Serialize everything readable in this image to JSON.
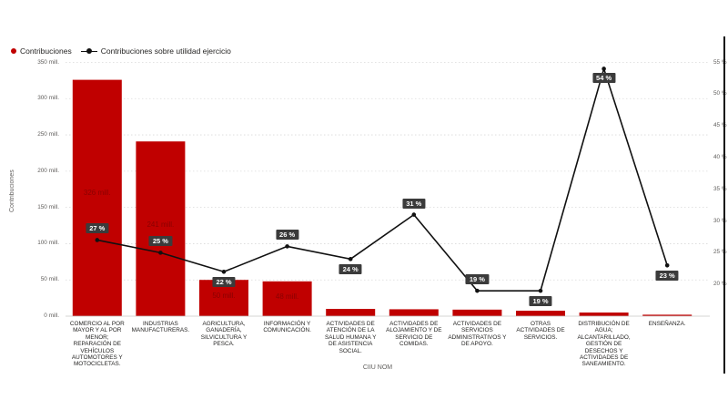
{
  "legend": {
    "bar_series": "Contribuciones",
    "line_series": "Contribuciones sobre utilidad ejercicio"
  },
  "axes": {
    "y_left_label": "Contribuciones",
    "x_label": "CIIU NOM"
  },
  "colors": {
    "bar": "#c00000",
    "line": "#111111",
    "badge": "#3b3b3b",
    "grid": "#d9d9d9",
    "tick_text": "#605e5c"
  },
  "chart_data": {
    "type": "bar",
    "combo_line_series": true,
    "categories": [
      "COMERCIO AL POR MAYOR Y AL POR MENOR; REPARACIÓN DE VEHÍCULOS AUTOMOTORES Y MOTOCICLETAS.",
      "INDUSTRIAS MANUFACTURERAS.",
      "AGRICULTURA, GANADERÍA, SILVICULTURA Y PESCA.",
      "INFORMACIÓN Y COMUNICACIÓN.",
      "ACTIVIDADES DE ATENCIÓN DE LA SALUD HUMANA Y DE ASISTENCIA SOCIAL.",
      "ACTIVIDADES DE ALOJAMIENTO Y DE SERVICIO DE COMIDAS.",
      "ACTIVIDADES DE SERVICIOS ADMINISTRATIVOS Y DE APOYO.",
      "OTRAS ACTIVIDADES DE SERVICIOS.",
      "DISTRIBUCIÓN DE AGUA; ALCANTARILLADO, GESTIÓN DE DESECHOS Y ACTIVIDADES DE SANEAMIENTO.",
      "ENSEÑANZA."
    ],
    "series": [
      {
        "name": "Contribuciones",
        "type": "bar",
        "axis": "left",
        "values": [
          326,
          241,
          50,
          48,
          10,
          9.5,
          9,
          7.5,
          5,
          2
        ],
        "value_labels": [
          "326 mill.",
          "241 mill.",
          "50 mill.",
          "48 mill.",
          "",
          "",
          "",
          "",
          "",
          ""
        ]
      },
      {
        "name": "Contribuciones sobre utilidad ejercicio",
        "type": "line",
        "axis": "right",
        "values": [
          27,
          25,
          22,
          26,
          24,
          31,
          19,
          19,
          54,
          23
        ],
        "value_labels": [
          "27 %",
          "25 %",
          "22 %",
          "26 %",
          "24 %",
          "31 %",
          "19 %",
          "19 %",
          "54 %",
          "23 %"
        ]
      }
    ],
    "y_left": {
      "label": "Contribuciones",
      "ylim": [
        0,
        350
      ],
      "ticks": [
        0,
        50,
        100,
        150,
        200,
        250,
        300,
        350
      ],
      "tick_labels": [
        "0 mill.",
        "50 mill.",
        "100 mill.",
        "150 mill.",
        "200 mill.",
        "250 mill.",
        "300 mill.",
        "350 mill."
      ]
    },
    "y_right": {
      "ylim": [
        15,
        55
      ],
      "ticks": [
        20,
        25,
        30,
        35,
        40,
        45,
        50,
        55
      ],
      "tick_labels": [
        "20 %",
        "25 %",
        "30 %",
        "35 %",
        "40 %",
        "45 %",
        "50 %",
        "55 %"
      ]
    },
    "xlabel": "CIIU NOM",
    "ylabel": "Contribuciones",
    "grid": true,
    "legend_position": "top-left"
  }
}
